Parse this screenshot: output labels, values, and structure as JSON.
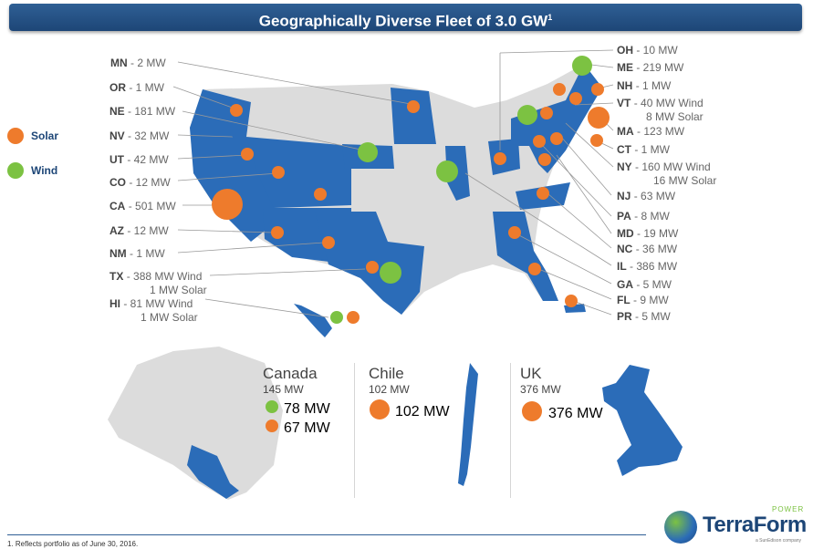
{
  "title": "Geographically Diverse Fleet of 3.0 GW",
  "title_sup": "1",
  "legend": {
    "solar": "Solar",
    "wind": "Wind"
  },
  "colors": {
    "solar": "#ee7b2c",
    "wind": "#7cc242",
    "region": "#2b6cb8",
    "land": "#dcdcdc",
    "title": "#1d4677"
  },
  "left_labels": [
    {
      "state": "MN",
      "value": "- 2 MW",
      "value2": ""
    },
    {
      "state": "OR",
      "value": "- 1 MW",
      "value2": ""
    },
    {
      "state": "NE",
      "value": "- 181 MW",
      "value2": ""
    },
    {
      "state": "NV",
      "value": "- 32 MW",
      "value2": ""
    },
    {
      "state": "UT",
      "value": "- 42 MW",
      "value2": ""
    },
    {
      "state": "CO",
      "value": "- 12 MW",
      "value2": ""
    },
    {
      "state": "CA",
      "value": "- 501 MW",
      "value2": ""
    },
    {
      "state": "AZ",
      "value": "- 12 MW",
      "value2": ""
    },
    {
      "state": "NM",
      "value": "- 1 MW",
      "value2": ""
    },
    {
      "state": "TX",
      "value": "- 388 MW Wind",
      "value2": "1 MW Solar"
    },
    {
      "state": "HI",
      "value": "- 81 MW Wind",
      "value2": "1 MW Solar"
    }
  ],
  "right_labels": [
    {
      "state": "OH",
      "value": "- 10 MW",
      "value2": ""
    },
    {
      "state": "ME",
      "value": "- 219 MW",
      "value2": ""
    },
    {
      "state": "NH",
      "value": "- 1 MW",
      "value2": ""
    },
    {
      "state": "VT",
      "value": "- 40 MW Wind",
      "value2": "8 MW Solar"
    },
    {
      "state": "MA",
      "value": "- 123 MW",
      "value2": ""
    },
    {
      "state": "CT",
      "value": "- 1 MW",
      "value2": ""
    },
    {
      "state": "NY",
      "value": "- 160 MW Wind",
      "value2": "16 MW Solar"
    },
    {
      "state": "NJ",
      "value": "- 63 MW",
      "value2": ""
    },
    {
      "state": "PA",
      "value": "- 8 MW",
      "value2": ""
    },
    {
      "state": "MD",
      "value": "- 19 MW",
      "value2": ""
    },
    {
      "state": "NC",
      "value": "- 36 MW",
      "value2": ""
    },
    {
      "state": "IL",
      "value": "- 386 MW",
      "value2": ""
    },
    {
      "state": "GA",
      "value": "- 5 MW",
      "value2": ""
    },
    {
      "state": "FL",
      "value": "- 9 MW",
      "value2": ""
    },
    {
      "state": "PR",
      "value": "- 5 MW",
      "value2": ""
    }
  ],
  "canada": {
    "name": "Canada",
    "total": "145 MW",
    "wind": "78 MW",
    "solar": "67 MW"
  },
  "chile": {
    "name": "Chile",
    "total": "102 MW",
    "solar": "102 MW"
  },
  "uk": {
    "name": "UK",
    "total": "376 MW",
    "solar": "376 MW"
  },
  "footnote": "1. Reflects portfolio as of June 30, 2016.",
  "logo": {
    "name": "TerraForm",
    "power": "POWER",
    "sub": "a SunEdison company"
  }
}
